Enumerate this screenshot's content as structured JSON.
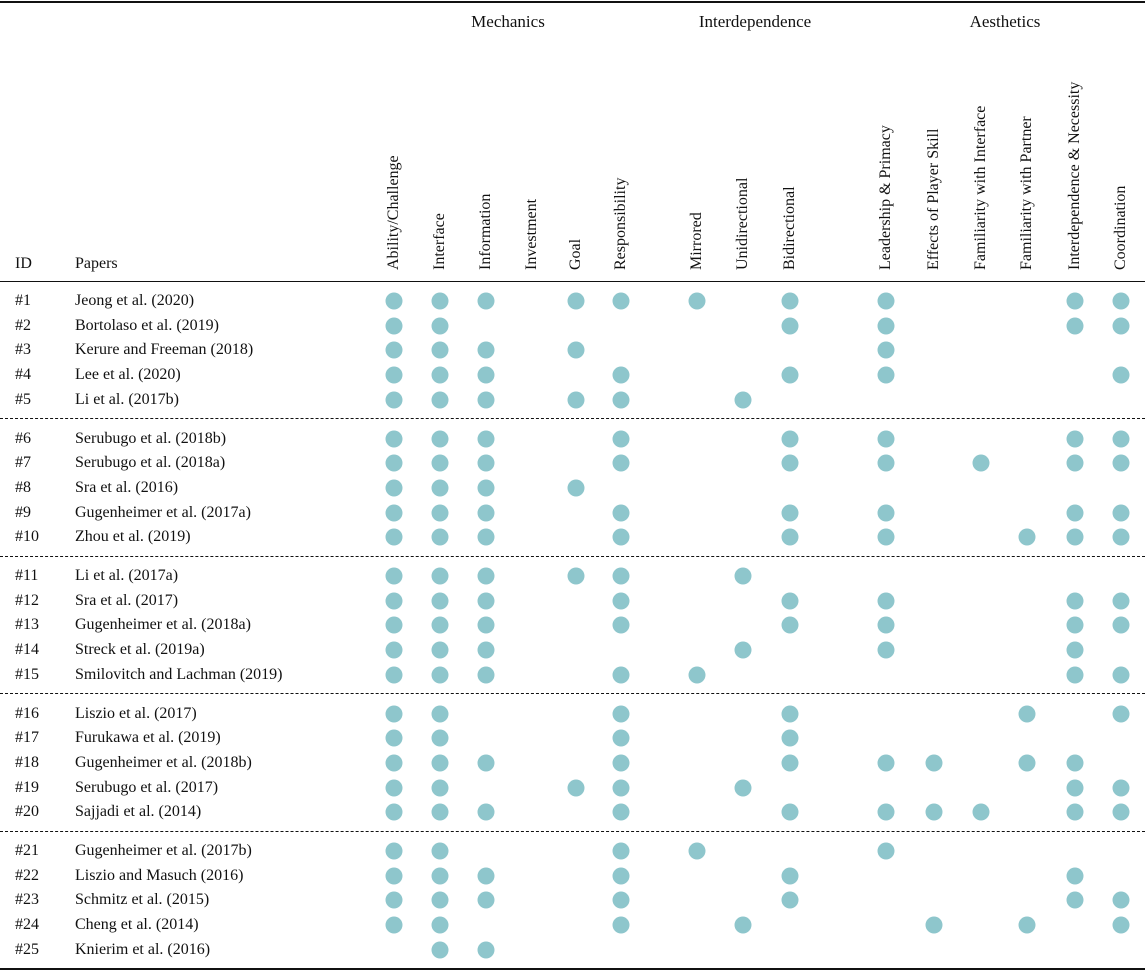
{
  "groups": [
    {
      "name": "Mechanics"
    },
    {
      "name": "Interdependence"
    },
    {
      "name": "Aesthetics"
    }
  ],
  "header": {
    "id": "ID",
    "papers": "Papers"
  },
  "columns": [
    "Ability/Challenge",
    "Interface",
    "Information",
    "Investment",
    "Goal",
    "Responsibility",
    "Mirrored",
    "Unidirectional",
    "Bidirectional",
    "Leadership & Primacy",
    "Effects of Player Skill",
    "Familiarity with Interface",
    "Familiarity with Partner",
    "Interdependence & Necessity",
    "Coordination"
  ],
  "dot_color": "#8ec6cc",
  "rows": [
    {
      "id": "#1",
      "paper": "Jeong et al. (2020)",
      "marks": [
        1,
        1,
        1,
        0,
        1,
        1,
        1,
        0,
        1,
        1,
        0,
        0,
        0,
        1,
        1
      ]
    },
    {
      "id": "#2",
      "paper": "Bortolaso et al. (2019)",
      "marks": [
        1,
        1,
        0,
        0,
        0,
        0,
        0,
        0,
        1,
        1,
        0,
        0,
        0,
        1,
        1
      ]
    },
    {
      "id": "#3",
      "paper": "Kerure and Freeman (2018)",
      "marks": [
        1,
        1,
        1,
        0,
        1,
        0,
        0,
        0,
        0,
        1,
        0,
        0,
        0,
        0,
        0
      ]
    },
    {
      "id": "#4",
      "paper": "Lee et al. (2020)",
      "marks": [
        1,
        1,
        1,
        0,
        0,
        1,
        0,
        0,
        1,
        1,
        0,
        0,
        0,
        0,
        1
      ]
    },
    {
      "id": "#5",
      "paper": "Li et al. (2017b)",
      "marks": [
        1,
        1,
        1,
        0,
        1,
        1,
        0,
        1,
        0,
        0,
        0,
        0,
        0,
        0,
        0
      ]
    },
    {
      "id": "#6",
      "paper": "Serubugo et al. (2018b)",
      "marks": [
        1,
        1,
        1,
        0,
        0,
        1,
        0,
        0,
        1,
        1,
        0,
        0,
        0,
        1,
        1
      ]
    },
    {
      "id": "#7",
      "paper": "Serubugo et al. (2018a)",
      "marks": [
        1,
        1,
        1,
        0,
        0,
        1,
        0,
        0,
        1,
        1,
        0,
        1,
        0,
        1,
        1
      ]
    },
    {
      "id": "#8",
      "paper": "Sra et al. (2016)",
      "marks": [
        1,
        1,
        1,
        0,
        1,
        0,
        0,
        0,
        0,
        0,
        0,
        0,
        0,
        0,
        0
      ]
    },
    {
      "id": "#9",
      "paper": "Gugenheimer et al. (2017a)",
      "marks": [
        1,
        1,
        1,
        0,
        0,
        1,
        0,
        0,
        1,
        1,
        0,
        0,
        0,
        1,
        1
      ]
    },
    {
      "id": "#10",
      "paper": "Zhou et al. (2019)",
      "marks": [
        1,
        1,
        1,
        0,
        0,
        1,
        0,
        0,
        1,
        1,
        0,
        0,
        1,
        1,
        1
      ]
    },
    {
      "id": "#11",
      "paper": "Li et al. (2017a)",
      "marks": [
        1,
        1,
        1,
        0,
        1,
        1,
        0,
        1,
        0,
        0,
        0,
        0,
        0,
        0,
        0
      ]
    },
    {
      "id": "#12",
      "paper": "Sra et al. (2017)",
      "marks": [
        1,
        1,
        1,
        0,
        0,
        1,
        0,
        0,
        1,
        1,
        0,
        0,
        0,
        1,
        1
      ]
    },
    {
      "id": "#13",
      "paper": "Gugenheimer et al. (2018a)",
      "marks": [
        1,
        1,
        1,
        0,
        0,
        1,
        0,
        0,
        1,
        1,
        0,
        0,
        0,
        1,
        1
      ]
    },
    {
      "id": "#14",
      "paper": "Streck et al. (2019a)",
      "marks": [
        1,
        1,
        1,
        0,
        0,
        0,
        0,
        1,
        0,
        1,
        0,
        0,
        0,
        1,
        0
      ]
    },
    {
      "id": "#15",
      "paper": "Smilovitch and Lachman (2019)",
      "marks": [
        1,
        1,
        1,
        0,
        0,
        1,
        1,
        0,
        0,
        0,
        0,
        0,
        0,
        1,
        1
      ]
    },
    {
      "id": "#16",
      "paper": "Liszio et al. (2017)",
      "marks": [
        1,
        1,
        0,
        0,
        0,
        1,
        0,
        0,
        1,
        0,
        0,
        0,
        1,
        0,
        1
      ]
    },
    {
      "id": "#17",
      "paper": "Furukawa et al. (2019)",
      "marks": [
        1,
        1,
        0,
        0,
        0,
        1,
        0,
        0,
        1,
        0,
        0,
        0,
        0,
        0,
        0
      ]
    },
    {
      "id": "#18",
      "paper": "Gugenheimer et al. (2018b)",
      "marks": [
        1,
        1,
        1,
        0,
        0,
        1,
        0,
        0,
        1,
        1,
        1,
        0,
        1,
        1,
        0
      ]
    },
    {
      "id": "#19",
      "paper": "Serubugo et al. (2017)",
      "marks": [
        1,
        1,
        0,
        0,
        1,
        1,
        0,
        1,
        0,
        0,
        0,
        0,
        0,
        1,
        1
      ]
    },
    {
      "id": "#20",
      "paper": "Sajjadi et al. (2014)",
      "marks": [
        1,
        1,
        1,
        0,
        0,
        1,
        0,
        0,
        1,
        1,
        1,
        1,
        0,
        1,
        1
      ]
    },
    {
      "id": "#21",
      "paper": "Gugenheimer et al. (2017b)",
      "marks": [
        1,
        1,
        0,
        0,
        0,
        1,
        1,
        0,
        0,
        1,
        0,
        0,
        0,
        0,
        0
      ]
    },
    {
      "id": "#22",
      "paper": "Liszio and Masuch (2016)",
      "marks": [
        1,
        1,
        1,
        0,
        0,
        1,
        0,
        0,
        1,
        0,
        0,
        0,
        0,
        1,
        0
      ]
    },
    {
      "id": "#23",
      "paper": "Schmitz et al. (2015)",
      "marks": [
        1,
        1,
        1,
        0,
        0,
        1,
        0,
        0,
        1,
        0,
        0,
        0,
        0,
        1,
        1
      ]
    },
    {
      "id": "#24",
      "paper": "Cheng et al. (2014)",
      "marks": [
        1,
        1,
        0,
        0,
        0,
        1,
        0,
        1,
        0,
        0,
        1,
        0,
        1,
        0,
        1
      ]
    },
    {
      "id": "#25",
      "paper": "Knierim et al. (2016)",
      "marks": [
        0,
        1,
        1,
        0,
        0,
        0,
        0,
        0,
        0,
        0,
        0,
        0,
        0,
        0,
        0
      ]
    }
  ]
}
